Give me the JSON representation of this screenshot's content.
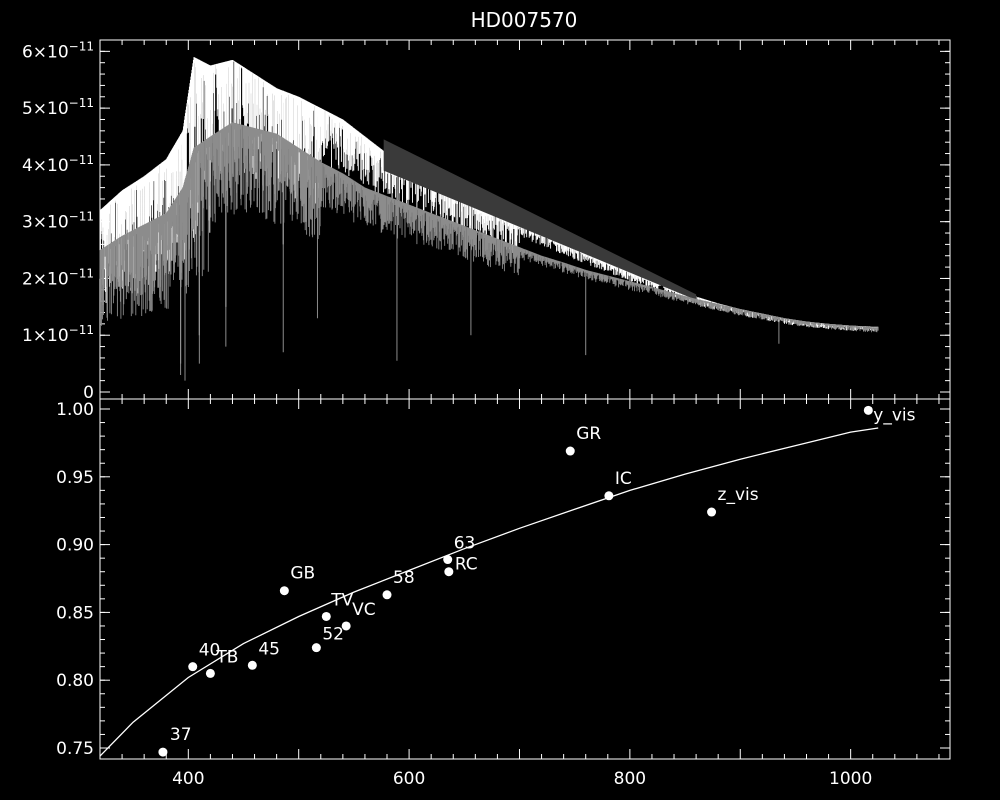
{
  "chart_data": [
    {
      "type": "line",
      "title": "HD007570",
      "xlabel": "",
      "ylabel": "",
      "xlim": [
        320,
        1090
      ],
      "ylim": [
        0,
        6.2e-11
      ],
      "colors": {
        "observed": "#ffffff",
        "model": "#8c8c8c",
        "gap": "#3a3a3a"
      },
      "ytick_labels": [
        {
          "value": 0,
          "mant": "0",
          "exp": ""
        },
        {
          "value": 1e-11,
          "mant": "1×10",
          "exp": "−11"
        },
        {
          "value": 2e-11,
          "mant": "2×10",
          "exp": "−11"
        },
        {
          "value": 3e-11,
          "mant": "3×10",
          "exp": "−11"
        },
        {
          "value": 4e-11,
          "mant": "4×10",
          "exp": "−11"
        },
        {
          "value": 5e-11,
          "mant": "5×10",
          "exp": "−11"
        },
        {
          "value": 6e-11,
          "mant": "6×10",
          "exp": "−11"
        }
      ],
      "series": [
        {
          "key": "observed",
          "x": [
            320,
            340,
            360,
            380,
            395,
            405,
            420,
            440,
            460,
            480,
            500,
            520,
            540,
            560,
            580,
            600,
            620,
            640,
            660,
            680,
            700,
            720,
            740,
            760,
            780,
            800,
            820,
            840,
            860,
            880,
            900,
            920,
            940,
            960,
            980,
            1000,
            1020
          ],
          "y": [
            3.2e-11,
            3.55e-11,
            3.8e-11,
            4.1e-11,
            4.6e-11,
            5.9e-11,
            5.75e-11,
            5.85e-11,
            5.6e-11,
            5.35e-11,
            5.2e-11,
            5e-11,
            4.8e-11,
            4.5e-11,
            4.2e-11,
            4.05e-11,
            3.85e-11,
            3.6e-11,
            3.4e-11,
            3.18e-11,
            2.98e-11,
            2.8e-11,
            2.62e-11,
            2.45e-11,
            2.28e-11,
            2.12e-11,
            1.96e-11,
            1.82e-11,
            1.68e-11,
            1.56e-11,
            1.46e-11,
            1.38e-11,
            1.3e-11,
            1.24e-11,
            1.2e-11,
            1.17e-11,
            1.15e-11
          ]
        },
        {
          "key": "model",
          "x": [
            320,
            340,
            360,
            380,
            395,
            405,
            420,
            440,
            460,
            480,
            500,
            520,
            540,
            560,
            580,
            600,
            620,
            640,
            660,
            680,
            700,
            720,
            740,
            760,
            780,
            800,
            820,
            840,
            860,
            880,
            900,
            920,
            940,
            960,
            980,
            1000,
            1020
          ],
          "y": [
            2.5e-11,
            2.75e-11,
            2.95e-11,
            3.15e-11,
            3.6e-11,
            4.3e-11,
            4.5e-11,
            4.75e-11,
            4.65e-11,
            4.55e-11,
            4.3e-11,
            4.05e-11,
            3.85e-11,
            3.6e-11,
            3.45e-11,
            3.3e-11,
            3.15e-11,
            3e-11,
            2.85e-11,
            2.7e-11,
            2.55e-11,
            2.4e-11,
            2.28e-11,
            2.15e-11,
            2.05e-11,
            1.95e-11,
            1.85e-11,
            1.74e-11,
            1.64e-11,
            1.55e-11,
            1.46e-11,
            1.38e-11,
            1.3e-11,
            1.24e-11,
            1.2e-11,
            1.17e-11,
            1.14e-11
          ]
        }
      ]
    },
    {
      "type": "scatter",
      "title": "",
      "xlabel": "",
      "ylabel": "",
      "xlim": [
        320,
        1090
      ],
      "ylim": [
        0.74,
        1.0
      ],
      "xticks": [
        400,
        600,
        800,
        1000
      ],
      "yticks": [
        0.75,
        0.8,
        0.85,
        0.9,
        0.95,
        1.0
      ],
      "ytick_labels": [
        "0.75",
        "0.80",
        "0.85",
        "0.90",
        "0.95",
        "1.00"
      ],
      "points": [
        {
          "label": "37",
          "x": 377,
          "y": 0.747
        },
        {
          "label": "40",
          "x": 404,
          "y": 0.81
        },
        {
          "label": "TB",
          "x": 420,
          "y": 0.805
        },
        {
          "label": "45",
          "x": 458,
          "y": 0.811
        },
        {
          "label": "GB",
          "x": 487,
          "y": 0.866
        },
        {
          "label": "52",
          "x": 516,
          "y": 0.824
        },
        {
          "label": "TV",
          "x": 525,
          "y": 0.847
        },
        {
          "label": "VC",
          "x": 543,
          "y": 0.84
        },
        {
          "label": "58",
          "x": 580,
          "y": 0.863
        },
        {
          "label": "63",
          "x": 635,
          "y": 0.889
        },
        {
          "label": "RC",
          "x": 636,
          "y": 0.88
        },
        {
          "label": "GR",
          "x": 746,
          "y": 0.969
        },
        {
          "label": "IC",
          "x": 781,
          "y": 0.936
        },
        {
          "label": "z_vis",
          "x": 874,
          "y": 0.924
        },
        {
          "label": "y_vis",
          "x": 1016,
          "y": 0.999
        }
      ],
      "fit_line": {
        "x": [
          320,
          350,
          400,
          450,
          500,
          550,
          600,
          650,
          700,
          750,
          800,
          850,
          900,
          950,
          1000,
          1025
        ],
        "y": [
          0.744,
          0.769,
          0.802,
          0.827,
          0.847,
          0.865,
          0.881,
          0.897,
          0.912,
          0.926,
          0.94,
          0.952,
          0.963,
          0.973,
          0.983,
          0.986
        ]
      }
    }
  ]
}
